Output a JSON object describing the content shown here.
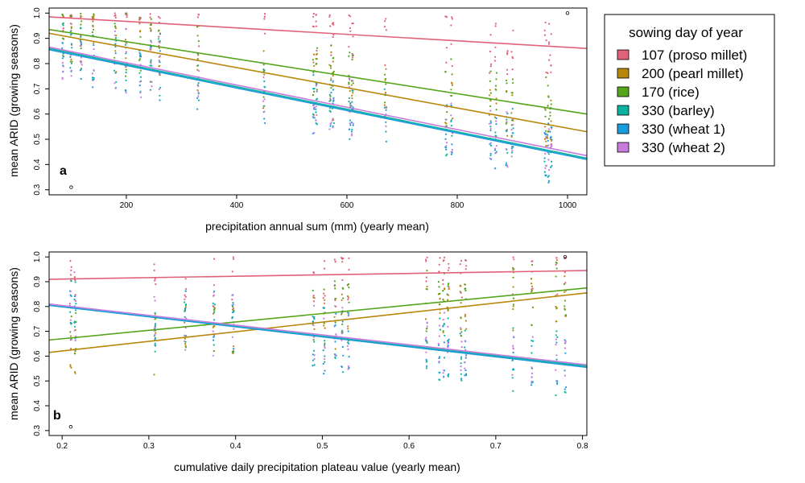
{
  "legend": {
    "title": "sowing day of year",
    "entries": [
      {
        "label": "107 (proso millet)",
        "color": "#e0627a"
      },
      {
        "label": "200 (pearl millet)",
        "color": "#b8860b"
      },
      {
        "label": "170 (rice)",
        "color": "#55a51c"
      },
      {
        "label": "330 (barley)",
        "color": "#0cb2a0"
      },
      {
        "label": "330 (wheat 1)",
        "color": "#1a9bdc"
      },
      {
        "label": "330 (wheat 2)",
        "color": "#c77cdd"
      }
    ]
  },
  "chart_data": [
    {
      "type": "scatter",
      "panel_label": "a",
      "xlabel": "precipitation annual sum (mm) (yearly mean)",
      "ylabel": "mean ARID (growing seasons)",
      "xlim": [
        60,
        1035
      ],
      "ylim": [
        0.28,
        1.02
      ],
      "xticks": [
        200,
        400,
        600,
        800,
        1000
      ],
      "xtick_labels": [
        "200",
        "400",
        "600",
        "800",
        "1000"
      ],
      "yticks": [
        0.3,
        0.4,
        0.5,
        0.6,
        0.7,
        0.8,
        0.9,
        1.0
      ],
      "ytick_labels": [
        "0.3",
        "0.4",
        "0.5",
        "0.6",
        "0.7",
        "0.8",
        "0.9",
        "1.0"
      ],
      "x_clusters": [
        85,
        100,
        118,
        140,
        180,
        200,
        225,
        245,
        260,
        330,
        450,
        540,
        545,
        570,
        575,
        605,
        610,
        670,
        780,
        790,
        860,
        870,
        890,
        900,
        960,
        965,
        970
      ],
      "series": [
        {
          "name": "107 (proso millet)",
          "line": {
            "x": [
              60,
              1035
            ],
            "y": [
              0.985,
              0.86
            ]
          }
        },
        {
          "name": "200 (pearl millet)",
          "line": {
            "x": [
              60,
              1035
            ],
            "y": [
              0.92,
              0.53
            ]
          }
        },
        {
          "name": "170 (rice)",
          "line": {
            "x": [
              60,
              1035
            ],
            "y": [
              0.935,
              0.6
            ]
          }
        },
        {
          "name": "330 (barley)",
          "line": {
            "x": [
              60,
              1035
            ],
            "y": [
              0.86,
              0.425
            ]
          }
        },
        {
          "name": "330 (wheat 1)",
          "line": {
            "x": [
              60,
              1035
            ],
            "y": [
              0.855,
              0.42
            ]
          }
        },
        {
          "name": "330 (wheat 2)",
          "line": {
            "x": [
              60,
              1035
            ],
            "y": [
              0.865,
              0.435
            ]
          }
        }
      ],
      "outliers": [
        {
          "x": 100,
          "y": 0.31
        },
        {
          "x": 1000,
          "y": 1.0
        }
      ]
    },
    {
      "type": "scatter",
      "panel_label": "b",
      "xlabel": "cumulative daily precipitation plateau value (yearly mean)",
      "ylabel": "mean ARID (growing seasons)",
      "xlim": [
        0.185,
        0.805
      ],
      "ylim": [
        0.28,
        1.02
      ],
      "xticks": [
        0.2,
        0.3,
        0.4,
        0.5,
        0.6,
        0.7,
        0.8
      ],
      "xtick_labels": [
        "0.2",
        "0.3",
        "0.4",
        "0.5",
        "0.6",
        "0.7",
        "0.8"
      ],
      "yticks": [
        0.3,
        0.4,
        0.5,
        0.6,
        0.7,
        0.8,
        0.9,
        1.0
      ],
      "ytick_labels": [
        "0.3",
        "0.4",
        "0.5",
        "0.6",
        "0.7",
        "0.8",
        "0.9",
        "1.0"
      ],
      "x_clusters": [
        0.21,
        0.215,
        0.307,
        0.342,
        0.375,
        0.397,
        0.49,
        0.502,
        0.515,
        0.523,
        0.53,
        0.62,
        0.635,
        0.64,
        0.645,
        0.66,
        0.665,
        0.72,
        0.742,
        0.77,
        0.78
      ],
      "series": [
        {
          "name": "107 (proso millet)",
          "line": {
            "x": [
              0.185,
              0.805
            ],
            "y": [
              0.91,
              0.945
            ]
          }
        },
        {
          "name": "200 (pearl millet)",
          "line": {
            "x": [
              0.185,
              0.805
            ],
            "y": [
              0.615,
              0.855
            ]
          }
        },
        {
          "name": "170 (rice)",
          "line": {
            "x": [
              0.185,
              0.805
            ],
            "y": [
              0.665,
              0.875
            ]
          }
        },
        {
          "name": "330 (barley)",
          "line": {
            "x": [
              0.185,
              0.805
            ],
            "y": [
              0.805,
              0.56
            ]
          }
        },
        {
          "name": "330 (wheat 1)",
          "line": {
            "x": [
              0.185,
              0.805
            ],
            "y": [
              0.805,
              0.555
            ]
          }
        },
        {
          "name": "330 (wheat 2)",
          "line": {
            "x": [
              0.185,
              0.805
            ],
            "y": [
              0.81,
              0.565
            ]
          }
        }
      ],
      "outliers": [
        {
          "x": 0.21,
          "y": 0.315
        },
        {
          "x": 0.78,
          "y": 1.0
        }
      ]
    }
  ]
}
